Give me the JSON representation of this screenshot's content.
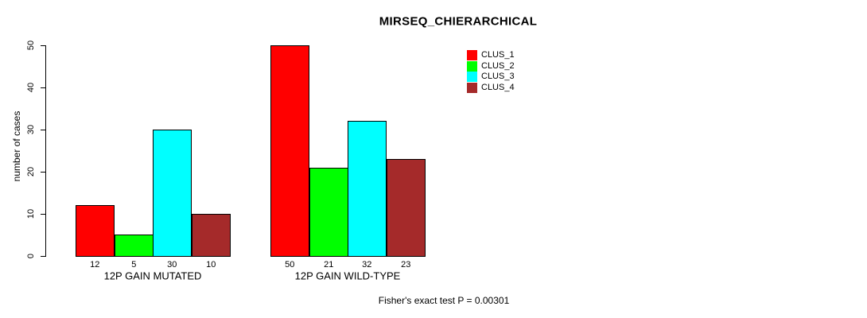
{
  "title": "MIRSEQ_CHIERARCHICAL",
  "footer": "Fisher's exact test P = 0.00301",
  "chart_data": {
    "type": "bar",
    "title": "MIRSEQ_CHIERARCHICAL",
    "xlabel": "",
    "ylabel": "number of cases",
    "ylim": [
      0,
      50
    ],
    "yticks": [
      0,
      10,
      20,
      30,
      40,
      50
    ],
    "grid": false,
    "legend_position": "top-right",
    "categories": [
      "12P GAIN MUTATED",
      "12P GAIN WILD-TYPE"
    ],
    "series": [
      {
        "name": "CLUS_1",
        "color": "#FF0000",
        "values": [
          12,
          50
        ]
      },
      {
        "name": "CLUS_2",
        "color": "#00FF00",
        "values": [
          5,
          21
        ]
      },
      {
        "name": "CLUS_3",
        "color": "#00FFFF",
        "values": [
          30,
          32
        ]
      },
      {
        "name": "CLUS_4",
        "color": "#A52A2A",
        "values": [
          10,
          23
        ]
      }
    ],
    "bar_labels": [
      [
        "12",
        "5",
        "30",
        "10"
      ],
      [
        "50",
        "21",
        "32",
        "23"
      ]
    ],
    "annotation": "Fisher's exact test P = 0.00301"
  }
}
